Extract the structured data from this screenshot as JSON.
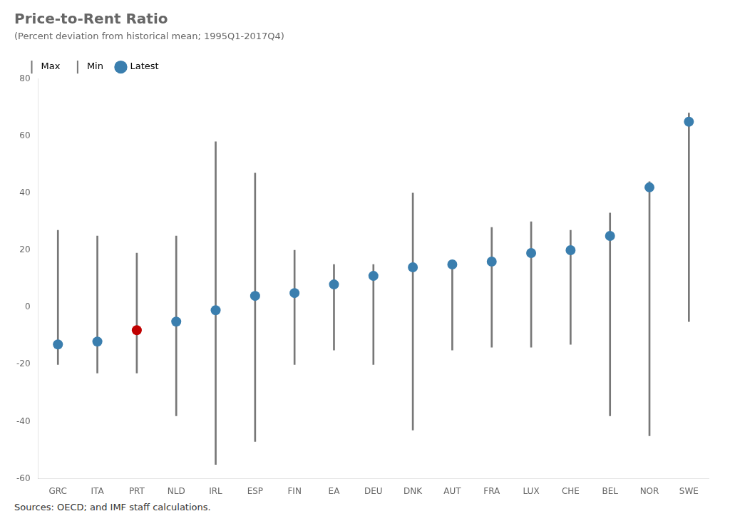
{
  "chart_data": {
    "type": "range",
    "title": "Price-to-Rent Ratio",
    "subtitle": "(Percent deviation from historical mean; 1995Q1-2017Q4)",
    "source": "Sources: OECD; and IMF staff calculations.",
    "categories": [
      "GRC",
      "ITA",
      "PRT",
      "NLD",
      "IRL",
      "ESP",
      "FIN",
      "EA",
      "DEU",
      "DNK",
      "AUT",
      "FRA",
      "LUX",
      "CHE",
      "BEL",
      "NOR",
      "SWE"
    ],
    "series": [
      {
        "name": "Max",
        "color": "#777777",
        "marker": "vline",
        "values": [
          27,
          25,
          19,
          25,
          58,
          47,
          20,
          15,
          15,
          40,
          15,
          28,
          30,
          27,
          33,
          44,
          68
        ]
      },
      {
        "name": "Min",
        "color": "#777777",
        "marker": "vline",
        "values": [
          -20,
          -23,
          -23,
          -38,
          -55,
          -47,
          -20,
          -15,
          -20,
          -43,
          -15,
          -14,
          -14,
          -13,
          -38,
          -45,
          -5
        ]
      },
      {
        "name": "Latest",
        "color": "#3A7EAE",
        "marker": "o",
        "colors": [
          "#3A7EAE",
          "#3A7EAE",
          "#C00000",
          "#3A7EAE",
          "#3A7EAE",
          "#3A7EAE",
          "#3A7EAE",
          "#3A7EAE",
          "#3A7EAE",
          "#3A7EAE",
          "#3A7EAE",
          "#3A7EAE",
          "#3A7EAE",
          "#3A7EAE",
          "#3A7EAE",
          "#3A7EAE",
          "#3A7EAE"
        ],
        "values": [
          -13,
          -12,
          -8,
          -5,
          -1,
          4,
          5,
          8,
          11,
          14,
          15,
          16,
          19,
          20,
          25,
          42,
          65
        ]
      }
    ],
    "ylim": [
      -60,
      80
    ],
    "yticks": [
      -60,
      -40,
      -20,
      0,
      20,
      40,
      60,
      80
    ],
    "grid": false,
    "legend": "upper left"
  }
}
